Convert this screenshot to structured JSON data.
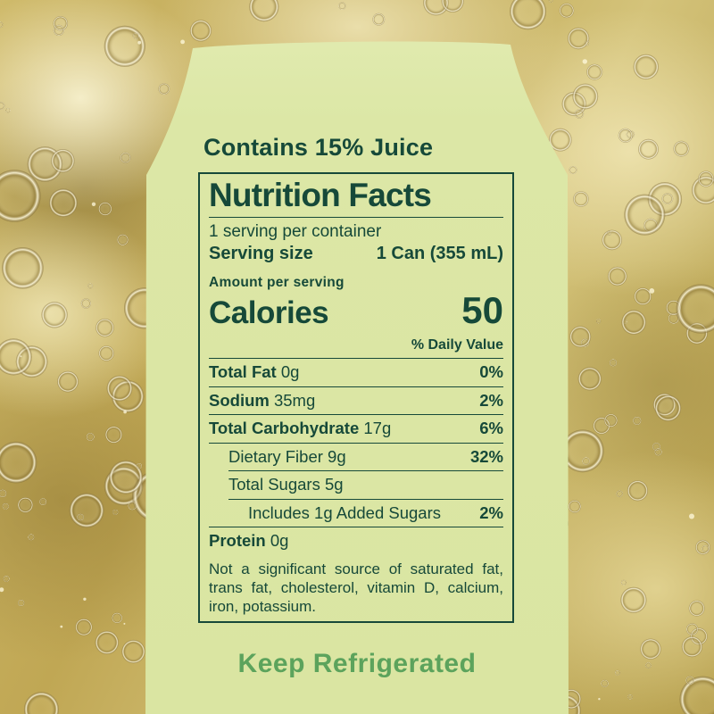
{
  "can": {
    "contains_juice": "Contains 15% Juice",
    "keep_refrigerated": "Keep Refrigerated"
  },
  "nutrition_facts": {
    "title": "Nutrition Facts",
    "servings_per_container": "1 serving per container",
    "serving_size_label": "Serving size",
    "serving_size_value": "1 Can (355 mL)",
    "amount_per_serving": "Amount per serving",
    "calories_label": "Calories",
    "calories_value": "50",
    "daily_value_header": "% Daily Value",
    "rows": [
      {
        "name": "Total Fat",
        "amount": "0g",
        "dv": "0%",
        "bold": true,
        "indent": 0
      },
      {
        "name": "Sodium",
        "amount": "35mg",
        "dv": "2%",
        "bold": true,
        "indent": 0
      },
      {
        "name": "Total Carbohydrate",
        "amount": "17g",
        "dv": "6%",
        "bold": true,
        "indent": 0
      },
      {
        "name": "Dietary Fiber",
        "amount": "9g",
        "dv": "32%",
        "bold": false,
        "indent": 1
      },
      {
        "name": "Total Sugars",
        "amount": "5g",
        "dv": "",
        "bold": false,
        "indent": 1
      },
      {
        "name": "Includes 1g Added Sugars",
        "amount": "",
        "dv": "2%",
        "bold": false,
        "indent": 2
      },
      {
        "name": "Protein",
        "amount": "0g",
        "dv": "",
        "bold": true,
        "indent": 0
      }
    ],
    "footnote": "Not a significant source of saturated fat, trans fat, cholesterol, vitamin D, calcium, iron, potassium."
  },
  "colors": {
    "label_green": "#164939",
    "can_background": "#dce7a6",
    "keep_refrigerated_green": "#5ca35c",
    "liquid_gold": "#c9b261"
  }
}
